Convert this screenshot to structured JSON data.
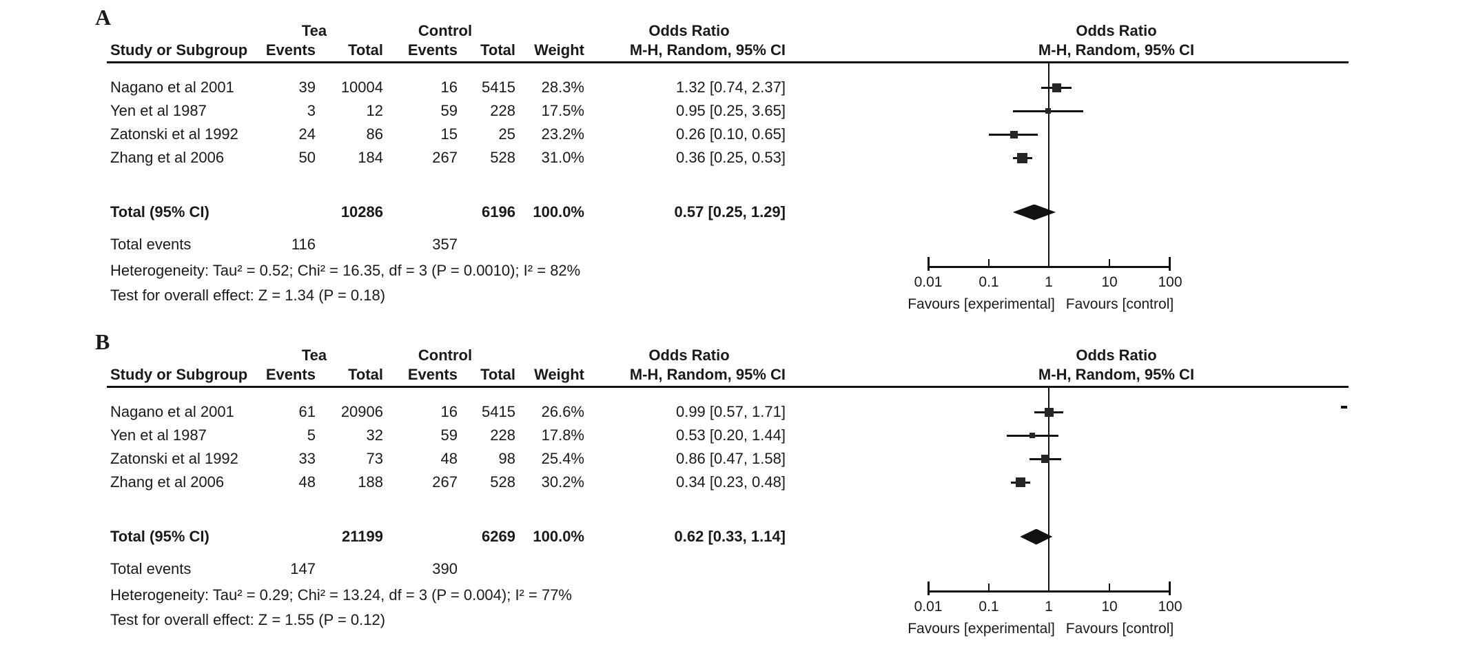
{
  "colors": {
    "text": "#1a1a1a",
    "marker": "#262626",
    "line": "#111111",
    "background": "#ffffff"
  },
  "axis": {
    "ticks": [
      "0.01",
      "0.1",
      "1",
      "10",
      "100"
    ],
    "favours_left": "Favours [experimental]",
    "favours_right": "Favours [control]"
  },
  "panels": [
    {
      "label": "A",
      "group_headers": {
        "tea": "Tea",
        "control": "Control",
        "odds_ratio_text": "Odds Ratio",
        "odds_ratio_plot": "Odds Ratio"
      },
      "column_headers": {
        "study": "Study or Subgroup",
        "tea_events": "Events",
        "tea_total": "Total",
        "ctrl_events": "Events",
        "ctrl_total": "Total",
        "weight": "Weight",
        "mh_ci": "M-H, Random, 95% CI",
        "mh_ci_plot": "M-H, Random, 95% CI"
      },
      "studies": [
        {
          "name": "Nagano et al 2001",
          "tea_events": "39",
          "tea_total": "10004",
          "ctrl_events": "16",
          "ctrl_total": "5415",
          "weight": "28.3%",
          "or_ci": "1.32 [0.74, 2.37]",
          "or": 1.32,
          "lo": 0.74,
          "hi": 2.37,
          "weight_pct": 28.3
        },
        {
          "name": "Yen et al 1987",
          "tea_events": "3",
          "tea_total": "12",
          "ctrl_events": "59",
          "ctrl_total": "228",
          "weight": "17.5%",
          "or_ci": "0.95 [0.25, 3.65]",
          "or": 0.95,
          "lo": 0.25,
          "hi": 3.65,
          "weight_pct": 17.5
        },
        {
          "name": "Zatonski et al 1992",
          "tea_events": "24",
          "tea_total": "86",
          "ctrl_events": "15",
          "ctrl_total": "25",
          "weight": "23.2%",
          "or_ci": "0.26 [0.10, 0.65]",
          "or": 0.26,
          "lo": 0.1,
          "hi": 0.65,
          "weight_pct": 23.2
        },
        {
          "name": "Zhang et al 2006",
          "tea_events": "50",
          "tea_total": "184",
          "ctrl_events": "267",
          "ctrl_total": "528",
          "weight": "31.0%",
          "or_ci": "0.36 [0.25, 0.53]",
          "or": 0.36,
          "lo": 0.25,
          "hi": 0.53,
          "weight_pct": 31.0
        }
      ],
      "total_row": {
        "label": "Total (95% CI)",
        "tea_total": "10286",
        "ctrl_total": "6196",
        "weight": "100.0%",
        "or_ci": "0.57 [0.25, 1.29]",
        "or": 0.57,
        "lo": 0.25,
        "hi": 1.29
      },
      "total_events": {
        "label": "Total events",
        "tea": "116",
        "ctrl": "357"
      },
      "heterogeneity": "Heterogeneity: Tau² = 0.52; Chi² = 16.35, df = 3 (P = 0.0010); I² = 82%",
      "overall_effect": "Test for overall effect: Z = 1.34 (P = 0.18)"
    },
    {
      "label": "B",
      "group_headers": {
        "tea": "Tea",
        "control": "Control",
        "odds_ratio_text": "Odds Ratio",
        "odds_ratio_plot": "Odds Ratio"
      },
      "column_headers": {
        "study": "Study or Subgroup",
        "tea_events": "Events",
        "tea_total": "Total",
        "ctrl_events": "Events",
        "ctrl_total": "Total",
        "weight": "Weight",
        "mh_ci": "M-H, Random, 95% CI",
        "mh_ci_plot": "M-H, Random, 95% CI"
      },
      "studies": [
        {
          "name": "Nagano et al 2001",
          "tea_events": "61",
          "tea_total": "20906",
          "ctrl_events": "16",
          "ctrl_total": "5415",
          "weight": "26.6%",
          "or_ci": "0.99 [0.57, 1.71]",
          "or": 0.99,
          "lo": 0.57,
          "hi": 1.71,
          "weight_pct": 26.6
        },
        {
          "name": "Yen et al 1987",
          "tea_events": "5",
          "tea_total": "32",
          "ctrl_events": "59",
          "ctrl_total": "228",
          "weight": "17.8%",
          "or_ci": "0.53 [0.20, 1.44]",
          "or": 0.53,
          "lo": 0.2,
          "hi": 1.44,
          "weight_pct": 17.8
        },
        {
          "name": "Zatonski et al 1992",
          "tea_events": "33",
          "tea_total": "73",
          "ctrl_events": "48",
          "ctrl_total": "98",
          "weight": "25.4%",
          "or_ci": "0.86 [0.47, 1.58]",
          "or": 0.86,
          "lo": 0.47,
          "hi": 1.58,
          "weight_pct": 25.4
        },
        {
          "name": "Zhang et al 2006",
          "tea_events": "48",
          "tea_total": "188",
          "ctrl_events": "267",
          "ctrl_total": "528",
          "weight": "30.2%",
          "or_ci": "0.34 [0.23, 0.48]",
          "or": 0.34,
          "lo": 0.23,
          "hi": 0.48,
          "weight_pct": 30.2
        }
      ],
      "total_row": {
        "label": "Total (95% CI)",
        "tea_total": "21199",
        "ctrl_total": "6269",
        "weight": "100.0%",
        "or_ci": "0.62 [0.33, 1.14]",
        "or": 0.62,
        "lo": 0.33,
        "hi": 1.14
      },
      "total_events": {
        "label": "Total events",
        "tea": "147",
        "ctrl": "390"
      },
      "heterogeneity": "Heterogeneity: Tau² = 0.29; Chi² = 13.24, df = 3 (P = 0.004); I² = 77%",
      "overall_effect": "Test for overall effect: Z = 1.55 (P = 0.12)"
    }
  ],
  "chart_data": [
    {
      "type": "forest",
      "panel": "A",
      "effect_measure": "Odds Ratio (M-H, Random, 95% CI)",
      "x_scale": "log",
      "x_ticks": [
        0.01,
        0.1,
        1,
        10,
        100
      ],
      "xlim": [
        0.01,
        100
      ],
      "series": [
        {
          "study": "Nagano et al 2001",
          "or": 1.32,
          "ci_low": 0.74,
          "ci_high": 2.37,
          "weight_pct": 28.3
        },
        {
          "study": "Yen et al 1987",
          "or": 0.95,
          "ci_low": 0.25,
          "ci_high": 3.65,
          "weight_pct": 17.5
        },
        {
          "study": "Zatonski et al 1992",
          "or": 0.26,
          "ci_low": 0.1,
          "ci_high": 0.65,
          "weight_pct": 23.2
        },
        {
          "study": "Zhang et al 2006",
          "or": 0.36,
          "ci_low": 0.25,
          "ci_high": 0.53,
          "weight_pct": 31.0
        }
      ],
      "pooled": {
        "or": 0.57,
        "ci_low": 0.25,
        "ci_high": 1.29
      }
    },
    {
      "type": "forest",
      "panel": "B",
      "effect_measure": "Odds Ratio (M-H, Random, 95% CI)",
      "x_scale": "log",
      "x_ticks": [
        0.01,
        0.1,
        1,
        10,
        100
      ],
      "xlim": [
        0.01,
        100
      ],
      "series": [
        {
          "study": "Nagano et al 2001",
          "or": 0.99,
          "ci_low": 0.57,
          "ci_high": 1.71,
          "weight_pct": 26.6
        },
        {
          "study": "Yen et al 1987",
          "or": 0.53,
          "ci_low": 0.2,
          "ci_high": 1.44,
          "weight_pct": 17.8
        },
        {
          "study": "Zatonski et al 1992",
          "or": 0.86,
          "ci_low": 0.47,
          "ci_high": 1.58,
          "weight_pct": 25.4
        },
        {
          "study": "Zhang et al 2006",
          "or": 0.34,
          "ci_low": 0.23,
          "ci_high": 0.48,
          "weight_pct": 30.2
        }
      ],
      "pooled": {
        "or": 0.62,
        "ci_low": 0.33,
        "ci_high": 1.14
      }
    }
  ]
}
